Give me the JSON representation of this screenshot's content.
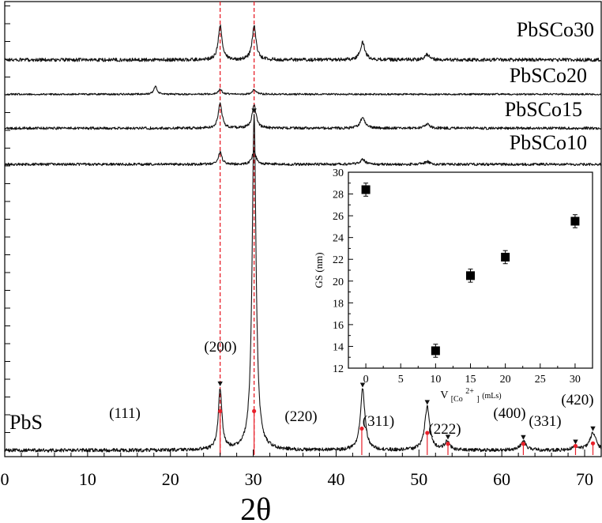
{
  "chart_data": [
    {
      "type": "line",
      "title": "",
      "xlabel": "2θ",
      "ylabel": "",
      "xlim": [
        0,
        72
      ],
      "xticks": [
        0,
        10,
        20,
        30,
        40,
        50,
        60,
        70
      ],
      "xtick_labels": [
        "0",
        "10",
        "20",
        "30",
        "40",
        "50",
        "60",
        "70"
      ],
      "grid": false,
      "reference_lines_x": [
        26.0,
        30.1
      ],
      "series": [
        {
          "name": "PbSCo30",
          "label": "PbSCo30",
          "baseline_offset": 0.897,
          "noise": 0.004,
          "peaks": [
            {
              "x": 26.0,
              "h": 0.08
            },
            {
              "x": 30.1,
              "h": 0.078
            },
            {
              "x": 43.2,
              "h": 0.04
            },
            {
              "x": 51.0,
              "h": 0.012
            }
          ]
        },
        {
          "name": "PbSCo20",
          "label": "PbSCo20",
          "baseline_offset": 0.818,
          "noise": 0.002,
          "peaks": [
            {
              "x": 18.2,
              "h": 0.018
            },
            {
              "x": 26.0,
              "h": 0.012
            },
            {
              "x": 30.1,
              "h": 0.01
            }
          ]
        },
        {
          "name": "PbSCo15",
          "label": "PbSCo15",
          "baseline_offset": 0.74,
          "noise": 0.003,
          "peaks": [
            {
              "x": 26.0,
              "h": 0.058
            },
            {
              "x": 30.1,
              "h": 0.055
            },
            {
              "x": 43.2,
              "h": 0.025
            },
            {
              "x": 51.0,
              "h": 0.01
            }
          ]
        },
        {
          "name": "PbSCo10",
          "label": "PbSCo10",
          "baseline_offset": 0.657,
          "noise": 0.003,
          "peaks": [
            {
              "x": 26.0,
              "h": 0.027
            },
            {
              "x": 30.1,
              "h": 0.03
            },
            {
              "x": 43.2,
              "h": 0.012
            },
            {
              "x": 51.0,
              "h": 0.006
            }
          ]
        },
        {
          "name": "PbS",
          "label": "PbS",
          "baseline_offset": 0.0,
          "noise": 0.004,
          "peaks": [
            {
              "x": 26.0,
              "h": 0.14
            },
            {
              "x": 30.1,
              "h": 0.77
            },
            {
              "x": 43.2,
              "h": 0.14
            },
            {
              "x": 51.0,
              "h": 0.1
            },
            {
              "x": 53.4,
              "h": 0.02
            },
            {
              "x": 62.6,
              "h": 0.02
            },
            {
              "x": 68.9,
              "h": 0.008
            },
            {
              "x": 71.0,
              "h": 0.04
            }
          ]
        }
      ],
      "reference_pattern": {
        "name": "PbS reference",
        "x": [
          26.0,
          30.1,
          43.1,
          51.0,
          53.5,
          62.6,
          68.9,
          71.0
        ],
        "y": [
          0.09,
          0.09,
          0.05,
          0.04,
          0.015,
          0.015,
          0.01,
          0.016
        ]
      },
      "markers_x": [
        26.0,
        30.1,
        43.2,
        51.0,
        53.5,
        62.6,
        68.9,
        71.0
      ],
      "annotations": [
        {
          "text": "(111)",
          "x": 26.0
        },
        {
          "text": "(200)",
          "x": 30.1
        },
        {
          "text": "(220)",
          "x": 43.2
        },
        {
          "text": "(311)",
          "x": 51.0
        },
        {
          "text": "(222)",
          "x": 53.5
        },
        {
          "text": "(400)",
          "x": 62.6
        },
        {
          "text": "(331)",
          "x": 68.9
        },
        {
          "text": "(420)",
          "x": 71.0
        }
      ]
    },
    {
      "type": "scatter",
      "title": "",
      "xlabel": "V[Co2+] (mLs)",
      "xlabel_parts": {
        "main": "V",
        "sub": "[Co",
        "sup": "2+",
        "sub_end": "]",
        "unit": " (mLs)"
      },
      "ylabel": "GS (nm)",
      "xlim": [
        -2.5,
        32.5
      ],
      "ylim": [
        12,
        30
      ],
      "xticks": [
        0,
        5,
        10,
        15,
        20,
        25,
        30
      ],
      "yticks": [
        12,
        14,
        16,
        18,
        20,
        22,
        24,
        26,
        28,
        30
      ],
      "series": [
        {
          "name": "GS",
          "x": [
            0,
            10,
            15,
            20,
            30
          ],
          "y": [
            28.4,
            13.6,
            20.5,
            22.2,
            25.5
          ],
          "yerr": [
            0.6,
            0.6,
            0.6,
            0.6,
            0.6
          ]
        }
      ]
    }
  ]
}
